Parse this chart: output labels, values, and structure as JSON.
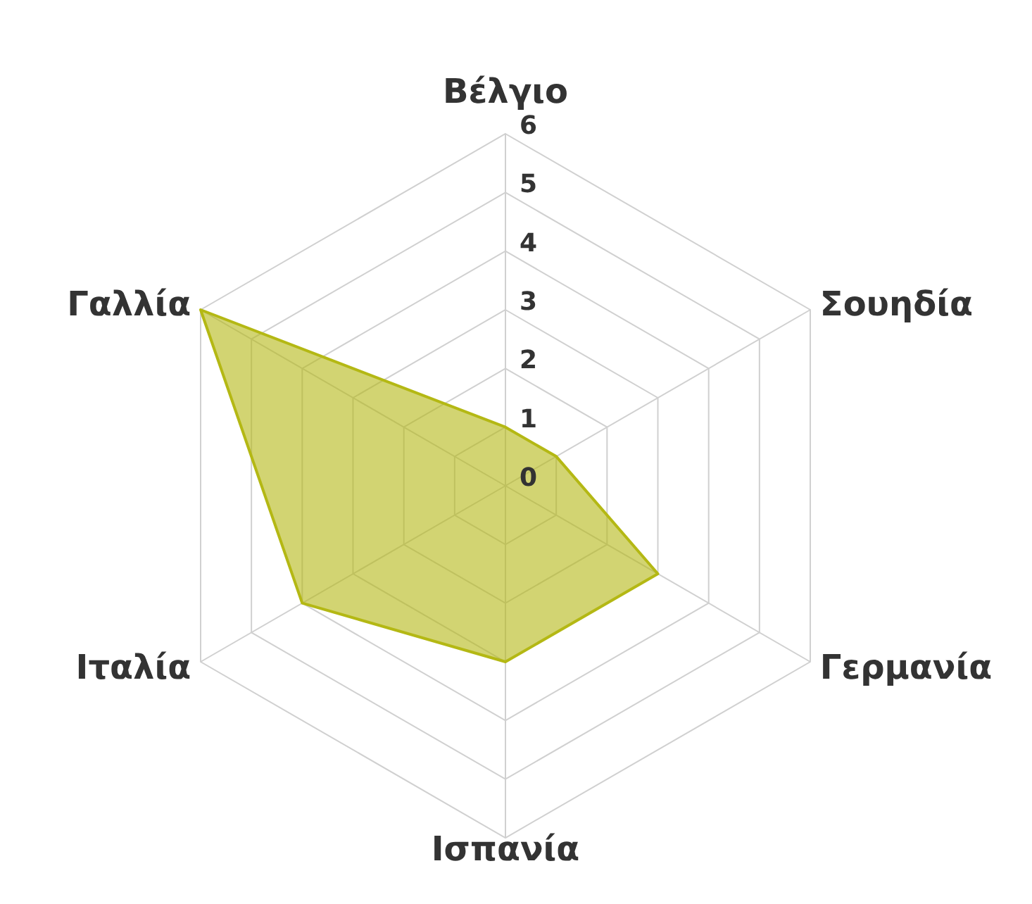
{
  "chart_data": {
    "type": "radar",
    "categories": [
      "Βέλγιο",
      "Σουηδία",
      "Γερμανία",
      "Ισπανία",
      "Ιταλία",
      "Γαλλία"
    ],
    "series": [
      {
        "color": "#b4b814",
        "values": [
          1,
          1,
          3,
          3,
          4,
          6
        ]
      }
    ],
    "ylim": [
      0,
      6
    ],
    "yticks": [
      0,
      1,
      2,
      3,
      4,
      5,
      6
    ],
    "grid": true
  }
}
